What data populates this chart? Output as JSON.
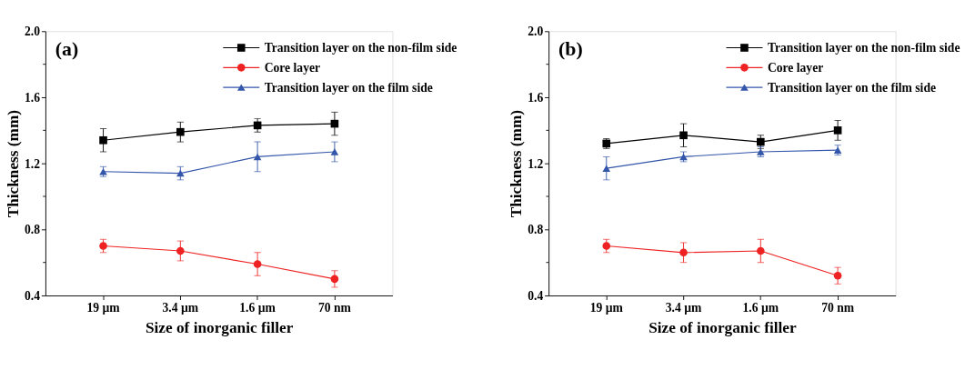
{
  "chart_data": [
    {
      "type": "line",
      "annotations": [
        "(a)"
      ],
      "xlabel": "Size of  inorganic filler",
      "ylabel": "Thickness (mm)",
      "categories": [
        "19 µm",
        "3.4 µm",
        "1.6 µm",
        "70 nm"
      ],
      "ylim": [
        0.4,
        2.0
      ],
      "yticks": [
        {
          "value": 0.4,
          "label": "0.4"
        },
        {
          "value": 0.6,
          "label": null
        },
        {
          "value": 0.8,
          "label": "0.8"
        },
        {
          "value": 1.0,
          "label": null
        },
        {
          "value": 1.2,
          "label": "1.2"
        },
        {
          "value": 1.4,
          "label": null
        },
        {
          "value": 1.6,
          "label": "1.6"
        },
        {
          "value": 1.8,
          "label": null
        },
        {
          "value": 2.0,
          "label": "2.0"
        }
      ],
      "legend": "top right",
      "grid": false,
      "line_style": "solid",
      "series": [
        {
          "name": "Transition layer on the non-film side",
          "color": "#000000",
          "marker": "square",
          "values": [
            1.34,
            1.39,
            1.43,
            1.44
          ],
          "errors": [
            0.07,
            0.06,
            0.04,
            0.07
          ]
        },
        {
          "name": "Core layer",
          "color": "#ee2222",
          "marker": "circle",
          "values": [
            0.7,
            0.67,
            0.59,
            0.5
          ],
          "errors": [
            0.04,
            0.06,
            0.07,
            0.05
          ]
        },
        {
          "name": "Transition layer on the film side",
          "color": "#3355aa",
          "marker": "triangle",
          "values": [
            1.15,
            1.14,
            1.24,
            1.27
          ],
          "errors": [
            0.03,
            0.04,
            0.09,
            0.06
          ]
        }
      ]
    },
    {
      "type": "line",
      "annotations": [
        "(b)"
      ],
      "xlabel": "Size of  inorganic filler",
      "ylabel": "Thickness (mm)",
      "categories": [
        "19 µm",
        "3.4 µm",
        "1.6 µm",
        "70 nm"
      ],
      "ylim": [
        0.4,
        2.0
      ],
      "yticks": [
        {
          "value": 0.4,
          "label": "0.4"
        },
        {
          "value": 0.6,
          "label": null
        },
        {
          "value": 0.8,
          "label": "0.8"
        },
        {
          "value": 1.0,
          "label": null
        },
        {
          "value": 1.2,
          "label": "1.2"
        },
        {
          "value": 1.4,
          "label": null
        },
        {
          "value": 1.6,
          "label": "1.6"
        },
        {
          "value": 1.8,
          "label": null
        },
        {
          "value": 2.0,
          "label": "2.0"
        }
      ],
      "legend": "top right",
      "grid": false,
      "line_style": "solid",
      "series": [
        {
          "name": "Transition layer on the non-film side",
          "color": "#000000",
          "marker": "square",
          "values": [
            1.32,
            1.37,
            1.33,
            1.4
          ],
          "errors": [
            0.03,
            0.07,
            0.04,
            0.06
          ]
        },
        {
          "name": "Core layer",
          "color": "#ee2222",
          "marker": "circle",
          "values": [
            0.7,
            0.66,
            0.67,
            0.52
          ],
          "errors": [
            0.04,
            0.06,
            0.07,
            0.05
          ]
        },
        {
          "name": "Transition layer on the film side",
          "color": "#3355aa",
          "marker": "triangle",
          "values": [
            1.17,
            1.24,
            1.27,
            1.28
          ],
          "errors": [
            0.07,
            0.03,
            0.03,
            0.03
          ]
        }
      ]
    }
  ]
}
